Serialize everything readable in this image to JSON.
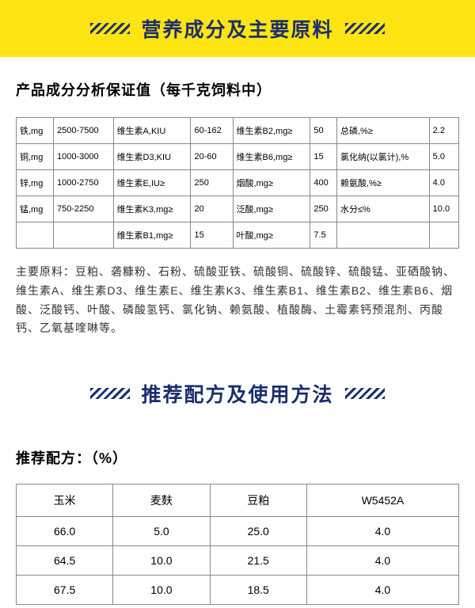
{
  "banner1": {
    "title": "营养成分及主要原料"
  },
  "section1": {
    "heading": "产品成分分析保证值（每千克饲料中）"
  },
  "nutri_table": {
    "rows": [
      [
        "铁,mg",
        "2500-7500",
        "维生素A,KIU",
        "60-162",
        "维生素B2,mg≥",
        "50",
        "总磷,%≥",
        "2.2"
      ],
      [
        "铜,mg",
        "1000-3000",
        "维生素D3,KIU",
        "20-60",
        "维生素B6,mg≥",
        "15",
        "氯化纳(以氯计),%",
        "5.0"
      ],
      [
        "锌,mg",
        "1000-2750",
        "维生素E,IU≥",
        "250",
        "烟酸,mg≥",
        "400",
        "赖氨酸,%≥",
        "4.0"
      ],
      [
        "锰,mg",
        "750-2250",
        "维生素K3,mg≥",
        "20",
        "泛酸,mg≥",
        "250",
        "水分≤%",
        "10.0"
      ],
      [
        "",
        "",
        "维生素B1,mg≥",
        "15",
        "叶酸,mg≥",
        "7.5",
        "",
        ""
      ]
    ]
  },
  "ingredients": {
    "text": "主要原料：豆粕、砻糠粉、石粉、硫酸亚铁、硫酸铜、硫酸锌、硫酸锰、亚硒酸钠、维生素A、维生素D3、维生素E、维生素K3、维生素B1、维生素B2、维生素B6、烟酸、泛酸钙、叶酸、磷酸氢钙、氯化钠、赖氨酸、植酸酶、土霉素钙预混剂、丙酸钙、乙氧基喹啉等。"
  },
  "banner2": {
    "title": "推荐配方及使用方法"
  },
  "section2": {
    "heading": "推荐配方：（%）"
  },
  "formula_table": {
    "headers": [
      "玉米",
      "麦麸",
      "豆粕",
      "W5452A"
    ],
    "rows": [
      [
        "66.0",
        "5.0",
        "25.0",
        "4.0"
      ],
      [
        "64.5",
        "10.0",
        "21.5",
        "4.0"
      ],
      [
        "67.5",
        "10.0",
        "18.5",
        "4.0"
      ]
    ]
  },
  "colors": {
    "yellow_bg": "#fee411",
    "blue_text": "#1a2e6e",
    "border": "#888888"
  }
}
